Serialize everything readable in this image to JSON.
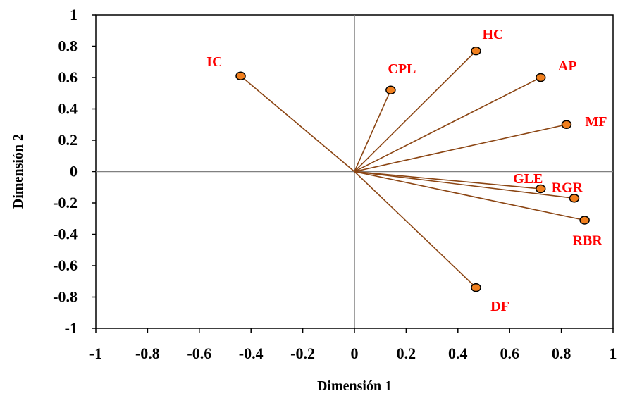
{
  "chart_data": {
    "type": "scatter",
    "subtype": "biplot-vectors",
    "title": "",
    "xlabel": "Dimensión  1",
    "ylabel": "Dimensión  2",
    "xlim": [
      -1,
      1
    ],
    "ylim": [
      -1,
      1
    ],
    "xticks": [
      "-1",
      "-0.8",
      "-0.6",
      "-0.4",
      "-0.2",
      "0",
      "0.2",
      "0.4",
      "0.6",
      "0.8",
      "1"
    ],
    "yticks": [
      "1",
      "0.8",
      "0.6",
      "0.4",
      "0.2",
      "0",
      "-0.2",
      "-0.4",
      "-0.6",
      "-0.8",
      "-1"
    ],
    "grid": false,
    "legend": "none",
    "colors": {
      "vector": "#8B4513",
      "marker_fill": "#F07F1E",
      "marker_stroke": "#000000",
      "label": "#FF0000",
      "axis_line": "#808080"
    },
    "points": [
      {
        "label": "IC",
        "x": -0.44,
        "y": 0.61
      },
      {
        "label": "CPL",
        "x": 0.14,
        "y": 0.52
      },
      {
        "label": "HC",
        "x": 0.47,
        "y": 0.77
      },
      {
        "label": "AP",
        "x": 0.72,
        "y": 0.6
      },
      {
        "label": "MF",
        "x": 0.82,
        "y": 0.3
      },
      {
        "label": "GLE",
        "x": 0.72,
        "y": -0.11
      },
      {
        "label": "RGR",
        "x": 0.85,
        "y": -0.17
      },
      {
        "label": "RBR",
        "x": 0.89,
        "y": -0.31
      },
      {
        "label": "DF",
        "x": 0.47,
        "y": -0.74
      }
    ]
  }
}
